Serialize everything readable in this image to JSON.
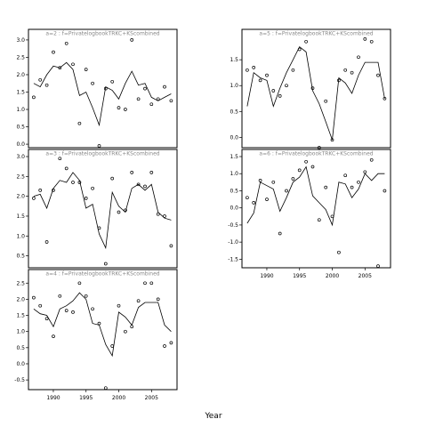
{
  "chart_data": {
    "type": "line",
    "xlabel": "Year",
    "xticks": [
      1990,
      1995,
      2000,
      2005
    ],
    "panels": [
      {
        "label": "a=2  :  f=PrivatelogbookTRKC+KScombined",
        "ylim": [
          -0.1,
          3.1
        ],
        "yticks": [
          "0.0",
          "0.5",
          "1.0",
          "1.5",
          "2.0",
          "2.5",
          "3.0"
        ],
        "x_fit": [
          1987,
          1988,
          1989,
          1990,
          1991,
          1992,
          1993,
          1994,
          1995,
          1996,
          1997,
          1998,
          1999,
          2000,
          2001,
          2002,
          2003,
          2004,
          2005,
          2006,
          2007,
          2008
        ],
        "fit": [
          1.75,
          1.65,
          2.0,
          2.25,
          2.2,
          2.35,
          2.15,
          1.4,
          1.5,
          1.05,
          0.55,
          1.65,
          1.55,
          1.3,
          1.75,
          2.1,
          1.7,
          1.75,
          1.35,
          1.25,
          1.35,
          1.45
        ],
        "x_obs": [
          1987,
          1988,
          1989,
          1990,
          1991,
          1992,
          1993,
          1994,
          1995,
          1996,
          1997,
          1998,
          1999,
          2000,
          2001,
          2002,
          2003,
          2004,
          2005,
          2006,
          2007,
          2008
        ],
        "obs": [
          1.35,
          1.85,
          1.7,
          2.65,
          2.2,
          2.9,
          2.3,
          0.6,
          2.15,
          1.75,
          -0.05,
          1.6,
          1.8,
          1.05,
          1.0,
          3.0,
          1.3,
          1.6,
          1.15,
          1.3,
          1.65,
          1.25
        ]
      },
      {
        "label": "a=3  :  f=PrivatelogbookTRKC+KScombined",
        "ylim": [
          0.2,
          3.0
        ],
        "yticks": [
          "0.5",
          "1.0",
          "1.5",
          "2.0",
          "2.5",
          "3.0"
        ],
        "x_fit": [
          1987,
          1988,
          1989,
          1990,
          1991,
          1992,
          1993,
          1994,
          1995,
          1996,
          1997,
          1998,
          1999,
          2000,
          2001,
          2002,
          2003,
          2004,
          2005,
          2006,
          2007,
          2008
        ],
        "fit": [
          2.0,
          2.05,
          1.7,
          2.2,
          2.4,
          2.35,
          2.6,
          2.4,
          1.7,
          1.8,
          1.05,
          0.7,
          2.1,
          1.75,
          1.6,
          2.2,
          2.3,
          2.15,
          2.3,
          1.6,
          1.45,
          1.4
        ],
        "x_obs": [
          1987,
          1988,
          1989,
          1990,
          1991,
          1992,
          1993,
          1994,
          1995,
          1996,
          1997,
          1998,
          1999,
          2000,
          2001,
          2002,
          2003,
          2004,
          2005,
          2006,
          2007,
          2008
        ],
        "obs": [
          1.95,
          2.15,
          0.85,
          2.15,
          2.95,
          2.7,
          2.35,
          2.35,
          1.95,
          2.2,
          1.2,
          0.3,
          2.45,
          1.6,
          1.65,
          2.6,
          2.3,
          2.25,
          2.6,
          1.55,
          1.5,
          0.75
        ]
      },
      {
        "label": "a=4  :  f=PrivatelogbookTRKC+KScombined",
        "ylim": [
          -0.8,
          2.7
        ],
        "yticks": [
          "-0.5",
          "0.0",
          "0.5",
          "1.0",
          "1.5",
          "2.0",
          "2.5"
        ],
        "x_fit": [
          1987,
          1988,
          1989,
          1990,
          1991,
          1992,
          1993,
          1994,
          1995,
          1996,
          1997,
          1998,
          1999,
          2000,
          2001,
          2002,
          2003,
          2004,
          2005,
          2006,
          2007,
          2008
        ],
        "fit": [
          1.7,
          1.55,
          1.5,
          1.15,
          1.7,
          1.8,
          1.95,
          2.2,
          2.0,
          1.25,
          1.2,
          0.6,
          0.25,
          1.6,
          1.45,
          1.2,
          1.75,
          1.9,
          1.9,
          1.9,
          1.2,
          1.0
        ],
        "x_obs": [
          1987,
          1988,
          1989,
          1990,
          1991,
          1992,
          1993,
          1994,
          1995,
          1996,
          1997,
          1998,
          1999,
          2000,
          2001,
          2002,
          2003,
          2004,
          2005,
          2006,
          2007,
          2008
        ],
        "obs": [
          2.05,
          1.8,
          1.4,
          0.85,
          2.1,
          1.65,
          1.6,
          2.5,
          2.1,
          1.7,
          1.25,
          -0.75,
          0.55,
          1.8,
          1.0,
          1.15,
          1.95,
          2.5,
          2.5,
          2.0,
          0.55,
          0.65
        ]
      },
      {
        "label": "a=5  :  f=PrivatelogbookTRKC+KScombined",
        "ylim": [
          -0.2,
          1.95
        ],
        "yticks": [
          "0.0",
          "0.5",
          "1.0",
          "1.5"
        ],
        "x_fit": [
          1987,
          1988,
          1989,
          1990,
          1991,
          1992,
          1993,
          1994,
          1995,
          1996,
          1997,
          1998,
          1999,
          2000,
          2001,
          2002,
          2003,
          2004,
          2005,
          2006,
          2007,
          2008
        ],
        "fit": [
          0.6,
          1.25,
          1.15,
          1.1,
          0.6,
          0.95,
          1.25,
          1.5,
          1.75,
          1.65,
          0.9,
          0.65,
          0.3,
          -0.05,
          1.15,
          1.05,
          0.85,
          1.2,
          1.45,
          1.45,
          1.45,
          0.75
        ],
        "x_obs": [
          1987,
          1988,
          1989,
          1990,
          1991,
          1992,
          1993,
          1994,
          1995,
          1996,
          1997,
          1998,
          1999,
          2000,
          2001,
          2002,
          2003,
          2004,
          2005,
          2006,
          2007,
          2008
        ],
        "obs": [
          1.3,
          1.35,
          1.1,
          1.2,
          0.9,
          0.8,
          1.0,
          1.3,
          1.7,
          1.85,
          0.95,
          -0.2,
          0.7,
          -0.05,
          1.1,
          1.3,
          1.25,
          1.55,
          1.9,
          1.85,
          1.2,
          0.75
        ]
      },
      {
        "label": "a=6  :  f=PrivatelogbookTRKC+KScombined",
        "ylim": [
          -1.75,
          1.5
        ],
        "yticks": [
          "-1.5",
          "-1.0",
          "-0.5",
          "0.0",
          "0.5",
          "1.0",
          "1.5"
        ],
        "x_fit": [
          1987,
          1988,
          1989,
          1990,
          1991,
          1992,
          1993,
          1994,
          1995,
          1996,
          1997,
          1998,
          1999,
          2000,
          2001,
          2002,
          2003,
          2004,
          2005,
          2006,
          2007,
          2008
        ],
        "fit": [
          -0.45,
          -0.15,
          0.75,
          0.65,
          0.55,
          -0.1,
          0.3,
          0.75,
          0.9,
          1.2,
          0.35,
          0.15,
          -0.05,
          -0.5,
          0.75,
          0.7,
          0.3,
          0.55,
          1.0,
          0.8,
          1.0,
          1.0
        ],
        "x_obs": [
          1987,
          1988,
          1989,
          1990,
          1991,
          1992,
          1993,
          1994,
          1995,
          1996,
          1997,
          1998,
          1999,
          2000,
          2001,
          2002,
          2003,
          2004,
          2005,
          2006,
          2007,
          2008
        ],
        "obs": [
          0.3,
          0.15,
          0.8,
          0.25,
          0.75,
          -0.75,
          0.5,
          0.85,
          1.1,
          1.35,
          1.2,
          -0.35,
          0.6,
          -0.25,
          -1.3,
          0.95,
          0.6,
          0.75,
          1.05,
          1.4,
          -1.7,
          0.5
        ]
      }
    ]
  }
}
